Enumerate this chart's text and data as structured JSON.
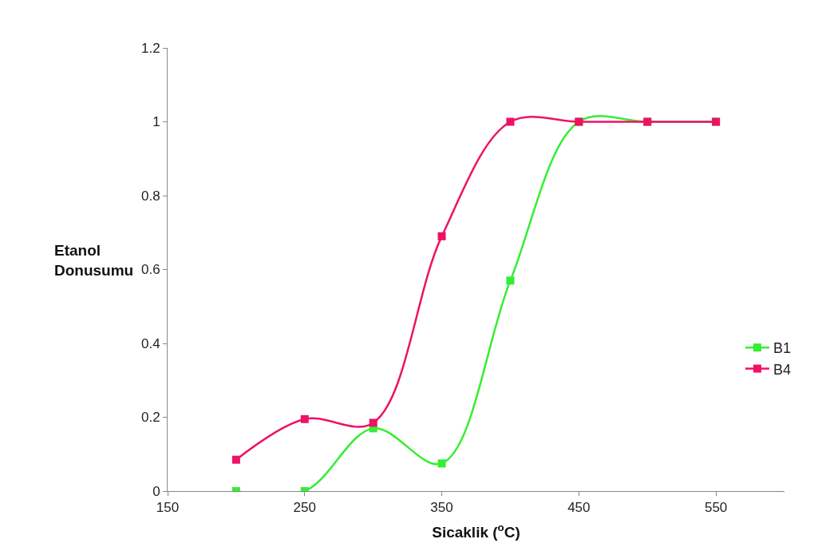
{
  "chart_data": {
    "type": "line",
    "xlabel": "Sicaklik ($^{o}$C)",
    "ylabel": "Etanol\nDonusumu",
    "x": [
      200,
      250,
      300,
      350,
      400,
      450,
      500,
      550
    ],
    "series": [
      {
        "name": "B1",
        "color": "#33ee33",
        "values": [
          0,
          0,
          0.17,
          0.075,
          0.57,
          1,
          1,
          1
        ]
      },
      {
        "name": "B4",
        "color": "#ee1166",
        "values": [
          0.085,
          0.195,
          0.185,
          0.69,
          1,
          1,
          1,
          1
        ]
      }
    ],
    "xlim": [
      150,
      600
    ],
    "xticks": [
      150,
      250,
      350,
      450,
      550
    ],
    "ylim": [
      0,
      1.2
    ],
    "yticks": [
      0,
      0.2,
      0.4,
      0.6,
      0.8,
      1,
      1.2
    ],
    "legend": "right",
    "marker": "square",
    "line_style": "solid"
  }
}
